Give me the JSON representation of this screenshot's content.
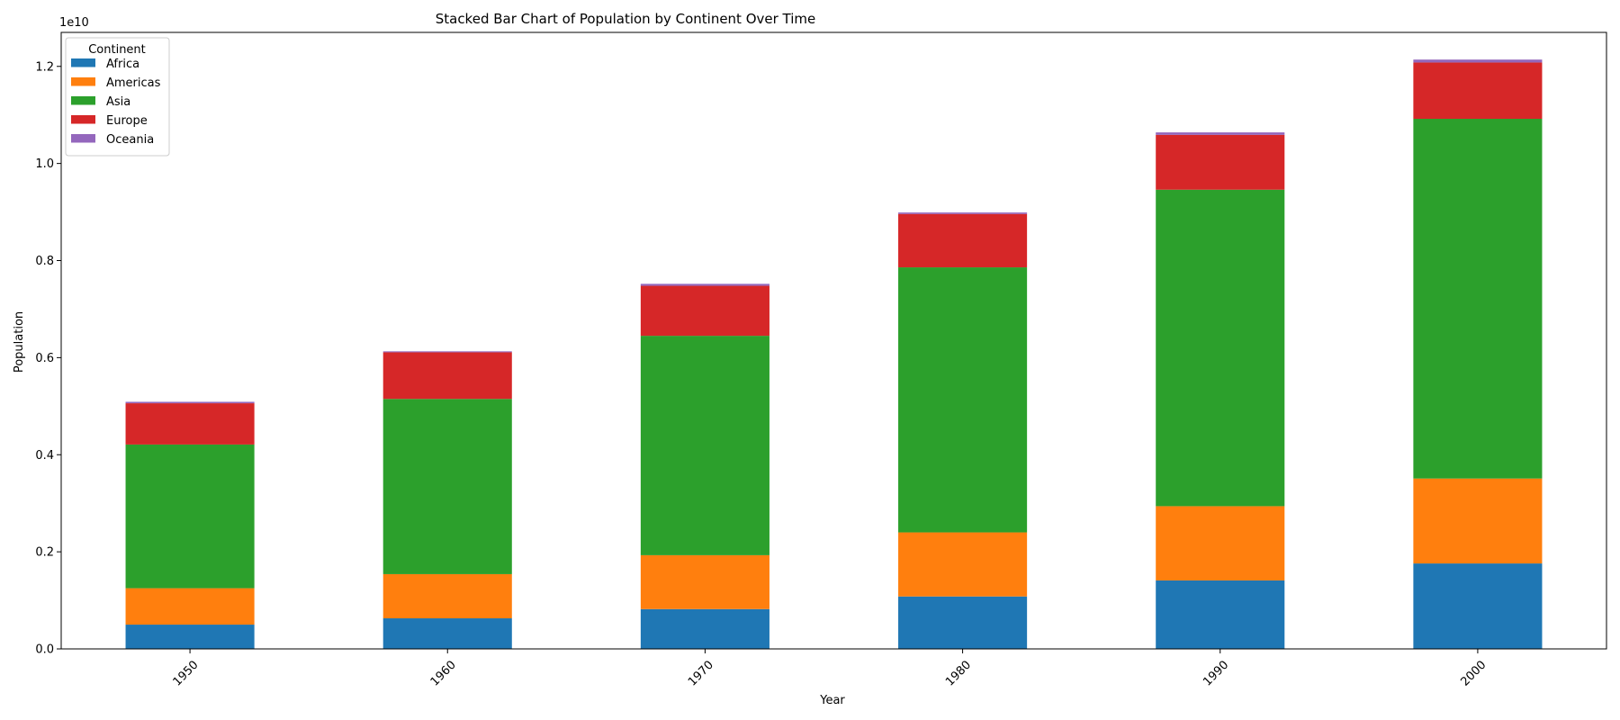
{
  "chart_data": {
    "type": "bar",
    "stacked": true,
    "title": "Stacked Bar Chart of Population by Continent Over Time",
    "xlabel": "Year",
    "ylabel": "Population",
    "y_offset_label": "1e10",
    "ylim": [
      0,
      12700000000
    ],
    "yticks": [
      0,
      2000000000,
      4000000000,
      6000000000,
      8000000000,
      10000000000,
      12000000000
    ],
    "ytick_labels": [
      "0.0",
      "0.2",
      "0.4",
      "0.6",
      "0.8",
      "1.0",
      "1.2"
    ],
    "categories": [
      "1950",
      "1960",
      "1970",
      "1980",
      "1990",
      "2000"
    ],
    "legend": {
      "title": "Continent",
      "placement": "top-left"
    },
    "grid": false,
    "series": [
      {
        "name": "Africa",
        "color": "#1f77b4",
        "values": [
          500000000,
          630000000,
          820000000,
          1080000000,
          1410000000,
          1760000000
        ]
      },
      {
        "name": "Americas",
        "color": "#ff7f0e",
        "values": [
          750000000,
          910000000,
          1110000000,
          1320000000,
          1530000000,
          1750000000
        ]
      },
      {
        "name": "Asia",
        "color": "#2ca02c",
        "values": [
          2960000000,
          3610000000,
          4520000000,
          5460000000,
          6520000000,
          7410000000
        ]
      },
      {
        "name": "Europe",
        "color": "#d62728",
        "values": [
          850000000,
          960000000,
          1030000000,
          1100000000,
          1130000000,
          1160000000
        ]
      },
      {
        "name": "Oceania",
        "color": "#9467bd",
        "values": [
          30000000,
          20000000,
          40000000,
          30000000,
          50000000,
          60000000
        ]
      }
    ]
  }
}
